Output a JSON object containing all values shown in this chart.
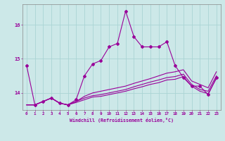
{
  "xlabel": "Windchill (Refroidissement éolien,°C)",
  "background_color": "#cce8e8",
  "line_color": "#990099",
  "grid_color": "#aad4d4",
  "hours": [
    0,
    1,
    2,
    3,
    4,
    5,
    6,
    7,
    8,
    9,
    10,
    11,
    12,
    13,
    14,
    15,
    16,
    17,
    18,
    19,
    20,
    21,
    22,
    23
  ],
  "line1": [
    14.8,
    13.65,
    13.75,
    13.85,
    13.7,
    13.65,
    13.8,
    14.5,
    14.85,
    14.95,
    15.35,
    15.45,
    16.4,
    15.65,
    15.35,
    15.35,
    15.35,
    15.5,
    14.8,
    14.45,
    14.2,
    14.2,
    13.95,
    14.45
  ],
  "line2": [
    13.65,
    13.65,
    13.75,
    13.85,
    13.7,
    13.65,
    13.75,
    13.9,
    14.0,
    14.05,
    14.1,
    14.15,
    14.2,
    14.28,
    14.35,
    14.42,
    14.5,
    14.58,
    14.62,
    14.68,
    14.35,
    14.25,
    14.15,
    14.62
  ],
  "line3": [
    13.65,
    13.65,
    13.75,
    13.85,
    13.7,
    13.65,
    13.75,
    13.85,
    13.92,
    13.95,
    14.0,
    14.05,
    14.1,
    14.18,
    14.25,
    14.32,
    14.38,
    14.45,
    14.48,
    14.55,
    14.25,
    14.1,
    14.05,
    14.5
  ],
  "line4": [
    13.65,
    13.65,
    13.75,
    13.85,
    13.7,
    13.65,
    13.72,
    13.8,
    13.88,
    13.9,
    13.95,
    14.0,
    14.05,
    14.12,
    14.18,
    14.25,
    14.3,
    14.38,
    14.4,
    14.48,
    14.2,
    14.05,
    13.98,
    14.42
  ],
  "xlim": [
    -0.5,
    23.5
  ],
  "ylim": [
    13.5,
    16.6
  ],
  "yticks": [
    14,
    15,
    16
  ],
  "xticks": [
    0,
    1,
    2,
    3,
    4,
    5,
    6,
    7,
    8,
    9,
    10,
    11,
    12,
    13,
    14,
    15,
    16,
    17,
    18,
    19,
    20,
    21,
    22,
    23
  ]
}
